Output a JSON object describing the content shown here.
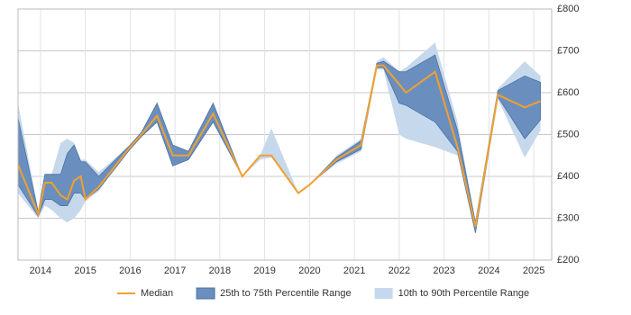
{
  "chart_data": {
    "type": "line",
    "x": [
      2013.5,
      2013.95,
      2014.1,
      2014.25,
      2014.45,
      2014.6,
      2014.75,
      2014.9,
      2015.0,
      2015.3,
      2016.0,
      2016.25,
      2016.6,
      2016.95,
      2017.3,
      2017.85,
      2018.5,
      2018.9,
      2019.15,
      2019.75,
      2020.0,
      2020.6,
      2021.15,
      2021.5,
      2021.65,
      2022.0,
      2022.15,
      2022.8,
      2023.3,
      2023.7,
      2024.2,
      2024.8,
      2025.15
    ],
    "series": [
      {
        "name": "Median",
        "color": "#f0a030",
        "values": [
          428,
          310,
          385,
          385,
          355,
          345,
          390,
          400,
          345,
          375,
          470,
          500,
          545,
          450,
          450,
          550,
          400,
          450,
          450,
          360,
          380,
          440,
          475,
          665,
          665,
          620,
          600,
          650,
          470,
          280,
          595,
          565,
          580
        ]
      },
      {
        "name": "25th to 75th Percentile Range",
        "color": "#6a8fbe",
        "low": [
          380,
          305,
          345,
          345,
          330,
          330,
          360,
          360,
          345,
          370,
          465,
          495,
          530,
          425,
          440,
          530,
          400,
          450,
          450,
          360,
          380,
          435,
          465,
          660,
          660,
          575,
          570,
          530,
          460,
          265,
          590,
          490,
          535
        ],
        "high": [
          540,
          315,
          405,
          405,
          405,
          455,
          475,
          435,
          435,
          400,
          475,
          505,
          575,
          475,
          460,
          575,
          400,
          450,
          450,
          360,
          380,
          445,
          485,
          670,
          675,
          650,
          650,
          690,
          510,
          290,
          605,
          640,
          625
        ]
      },
      {
        "name": "10th to 90th Percentile Range",
        "color": "#c6d8ec",
        "low": [
          360,
          300,
          330,
          320,
          300,
          290,
          300,
          320,
          340,
          365,
          465,
          495,
          530,
          425,
          440,
          530,
          400,
          440,
          445,
          360,
          380,
          430,
          460,
          655,
          655,
          500,
          490,
          470,
          450,
          265,
          585,
          445,
          510
        ],
        "high": [
          575,
          320,
          405,
          405,
          480,
          490,
          480,
          440,
          440,
          410,
          475,
          505,
          575,
          475,
          460,
          575,
          400,
          450,
          515,
          360,
          380,
          450,
          490,
          675,
          685,
          650,
          660,
          720,
          530,
          290,
          610,
          675,
          640
        ]
      }
    ],
    "xlim": [
      2013.5,
      2025.4
    ],
    "xticks": [
      2014,
      2015,
      2016,
      2017,
      2018,
      2019,
      2020,
      2021,
      2022,
      2023,
      2024,
      2025
    ],
    "ylim": [
      200,
      800
    ],
    "yticks": [
      {
        "value": 200,
        "label": "£200"
      },
      {
        "value": 300,
        "label": "£300"
      },
      {
        "value": 400,
        "label": "£400"
      },
      {
        "value": 500,
        "label": "£500"
      },
      {
        "value": 600,
        "label": "£600"
      },
      {
        "value": 700,
        "label": "£700"
      },
      {
        "value": 800,
        "label": "£800"
      }
    ],
    "grid": true
  }
}
